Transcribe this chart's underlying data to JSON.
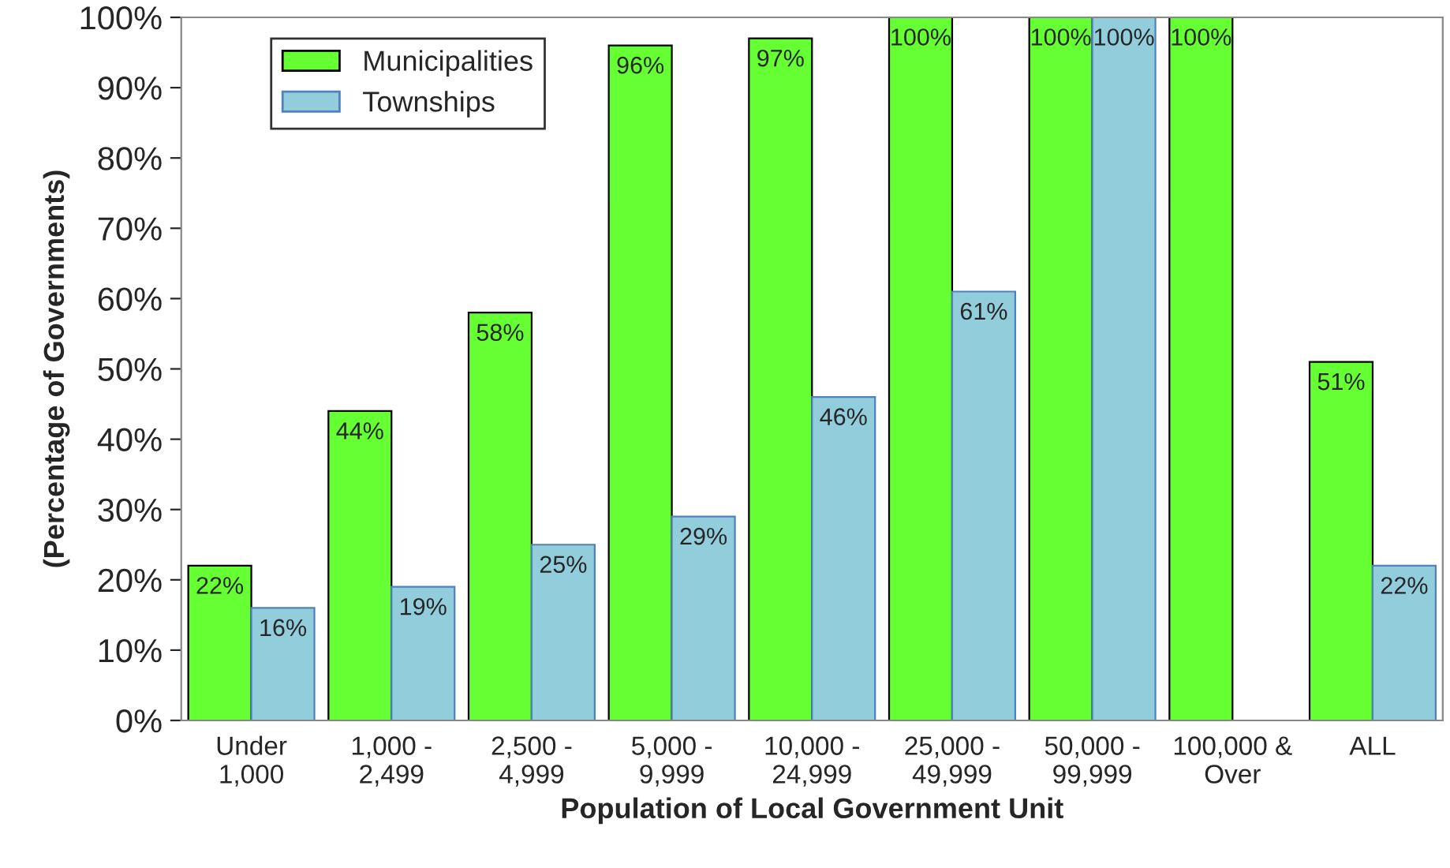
{
  "chart_data": {
    "type": "bar",
    "xlabel": "Population of Local Government Unit",
    "ylabel": "(Percentage of Governments)",
    "categories": [
      "Under\n1,000",
      "1,000 -\n2,499",
      "2,500 -\n4,999",
      "5,000 -\n9,999",
      "10,000 -\n24,999",
      "25,000 -\n49,999",
      "50,000 -\n99,999",
      "100,000 &\nOver",
      "ALL"
    ],
    "series": [
      {
        "name": "Municipalities",
        "color": "#66ff33",
        "values": [
          22,
          44,
          58,
          96,
          97,
          100,
          100,
          100,
          51
        ],
        "value_labels": [
          "22%",
          "44%",
          "58%",
          "96%",
          "97%",
          "100%",
          "100%",
          "100%",
          "51%"
        ]
      },
      {
        "name": "Townships",
        "color": "#92cddc",
        "values": [
          16,
          19,
          25,
          29,
          46,
          61,
          100,
          null,
          22
        ],
        "value_labels": [
          "16%",
          "19%",
          "25%",
          "29%",
          "46%",
          "61%",
          "100%",
          null,
          "22%"
        ]
      }
    ],
    "ylim": [
      0,
      100
    ],
    "yticks": [
      {
        "value": 0,
        "label": "0%"
      },
      {
        "value": 10,
        "label": "10%"
      },
      {
        "value": 20,
        "label": "20%"
      },
      {
        "value": 30,
        "label": "30%"
      },
      {
        "value": 40,
        "label": "40%"
      },
      {
        "value": 50,
        "label": "50%"
      },
      {
        "value": 60,
        "label": "60%"
      },
      {
        "value": 70,
        "label": "70%"
      },
      {
        "value": 80,
        "label": "80%"
      },
      {
        "value": 90,
        "label": "90%"
      },
      {
        "value": 100,
        "label": "100%"
      }
    ],
    "grid": false,
    "legend": "top left"
  }
}
